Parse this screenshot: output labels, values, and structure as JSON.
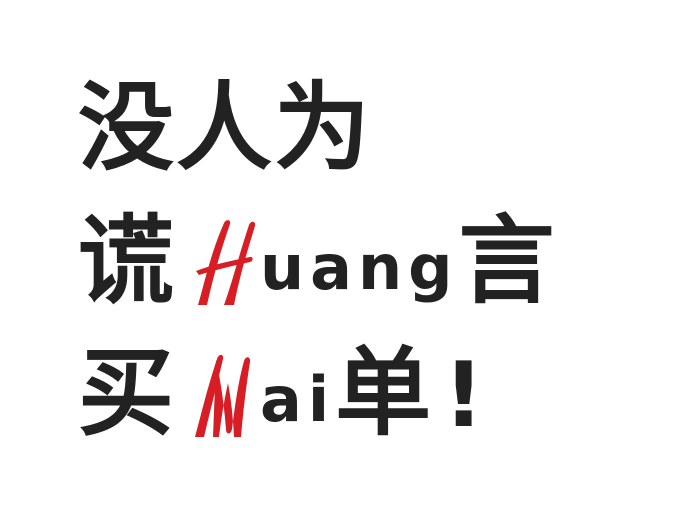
{
  "line1": {
    "text": "没人为"
  },
  "line2": {
    "prefix": "谎",
    "highlight": "H",
    "latin": "uang",
    "suffix": "言"
  },
  "line3": {
    "prefix": "买",
    "highlight": "M",
    "latin": "ai",
    "suffix": "单",
    "punct": "!"
  },
  "colors": {
    "text": "#222222",
    "accent": "#d81e25",
    "background": "#ffffff"
  }
}
